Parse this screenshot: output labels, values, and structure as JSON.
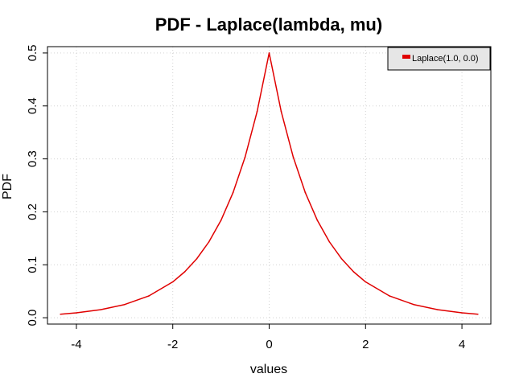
{
  "chart_data": {
    "type": "line",
    "title": "PDF - Laplace(lambda, mu)",
    "xlabel": "values",
    "ylabel": "PDF",
    "xlim": [
      -4.6,
      4.6
    ],
    "ylim": [
      -0.012,
      0.512
    ],
    "xticks": [
      -4,
      -2,
      0,
      2,
      4
    ],
    "yticks": [
      0.0,
      0.1,
      0.2,
      0.3,
      0.4,
      0.5
    ],
    "xtick_labels": [
      "-4",
      "-2",
      "0",
      "2",
      "4"
    ],
    "ytick_labels": [
      "0.0",
      "0.1",
      "0.2",
      "0.3",
      "0.4",
      "0.5"
    ],
    "grid": true,
    "legend_position": "top-right",
    "series": [
      {
        "name": "Laplace(1.0, 0.0)",
        "color": "#e00000",
        "x": [
          -4.33,
          -4.0,
          -3.5,
          -3.0,
          -2.5,
          -2.0,
          -1.75,
          -1.5,
          -1.25,
          -1.0,
          -0.75,
          -0.5,
          -0.25,
          0.0,
          0.25,
          0.5,
          0.75,
          1.0,
          1.25,
          1.5,
          1.75,
          2.0,
          2.5,
          3.0,
          3.5,
          4.0,
          4.33
        ],
        "y": [
          0.0066,
          0.0092,
          0.0151,
          0.0249,
          0.041,
          0.0677,
          0.0869,
          0.1116,
          0.1433,
          0.1839,
          0.2362,
          0.3033,
          0.3894,
          0.5,
          0.3894,
          0.3033,
          0.2362,
          0.1839,
          0.1433,
          0.1116,
          0.0869,
          0.0677,
          0.041,
          0.0249,
          0.0151,
          0.0092,
          0.0066
        ]
      }
    ]
  }
}
